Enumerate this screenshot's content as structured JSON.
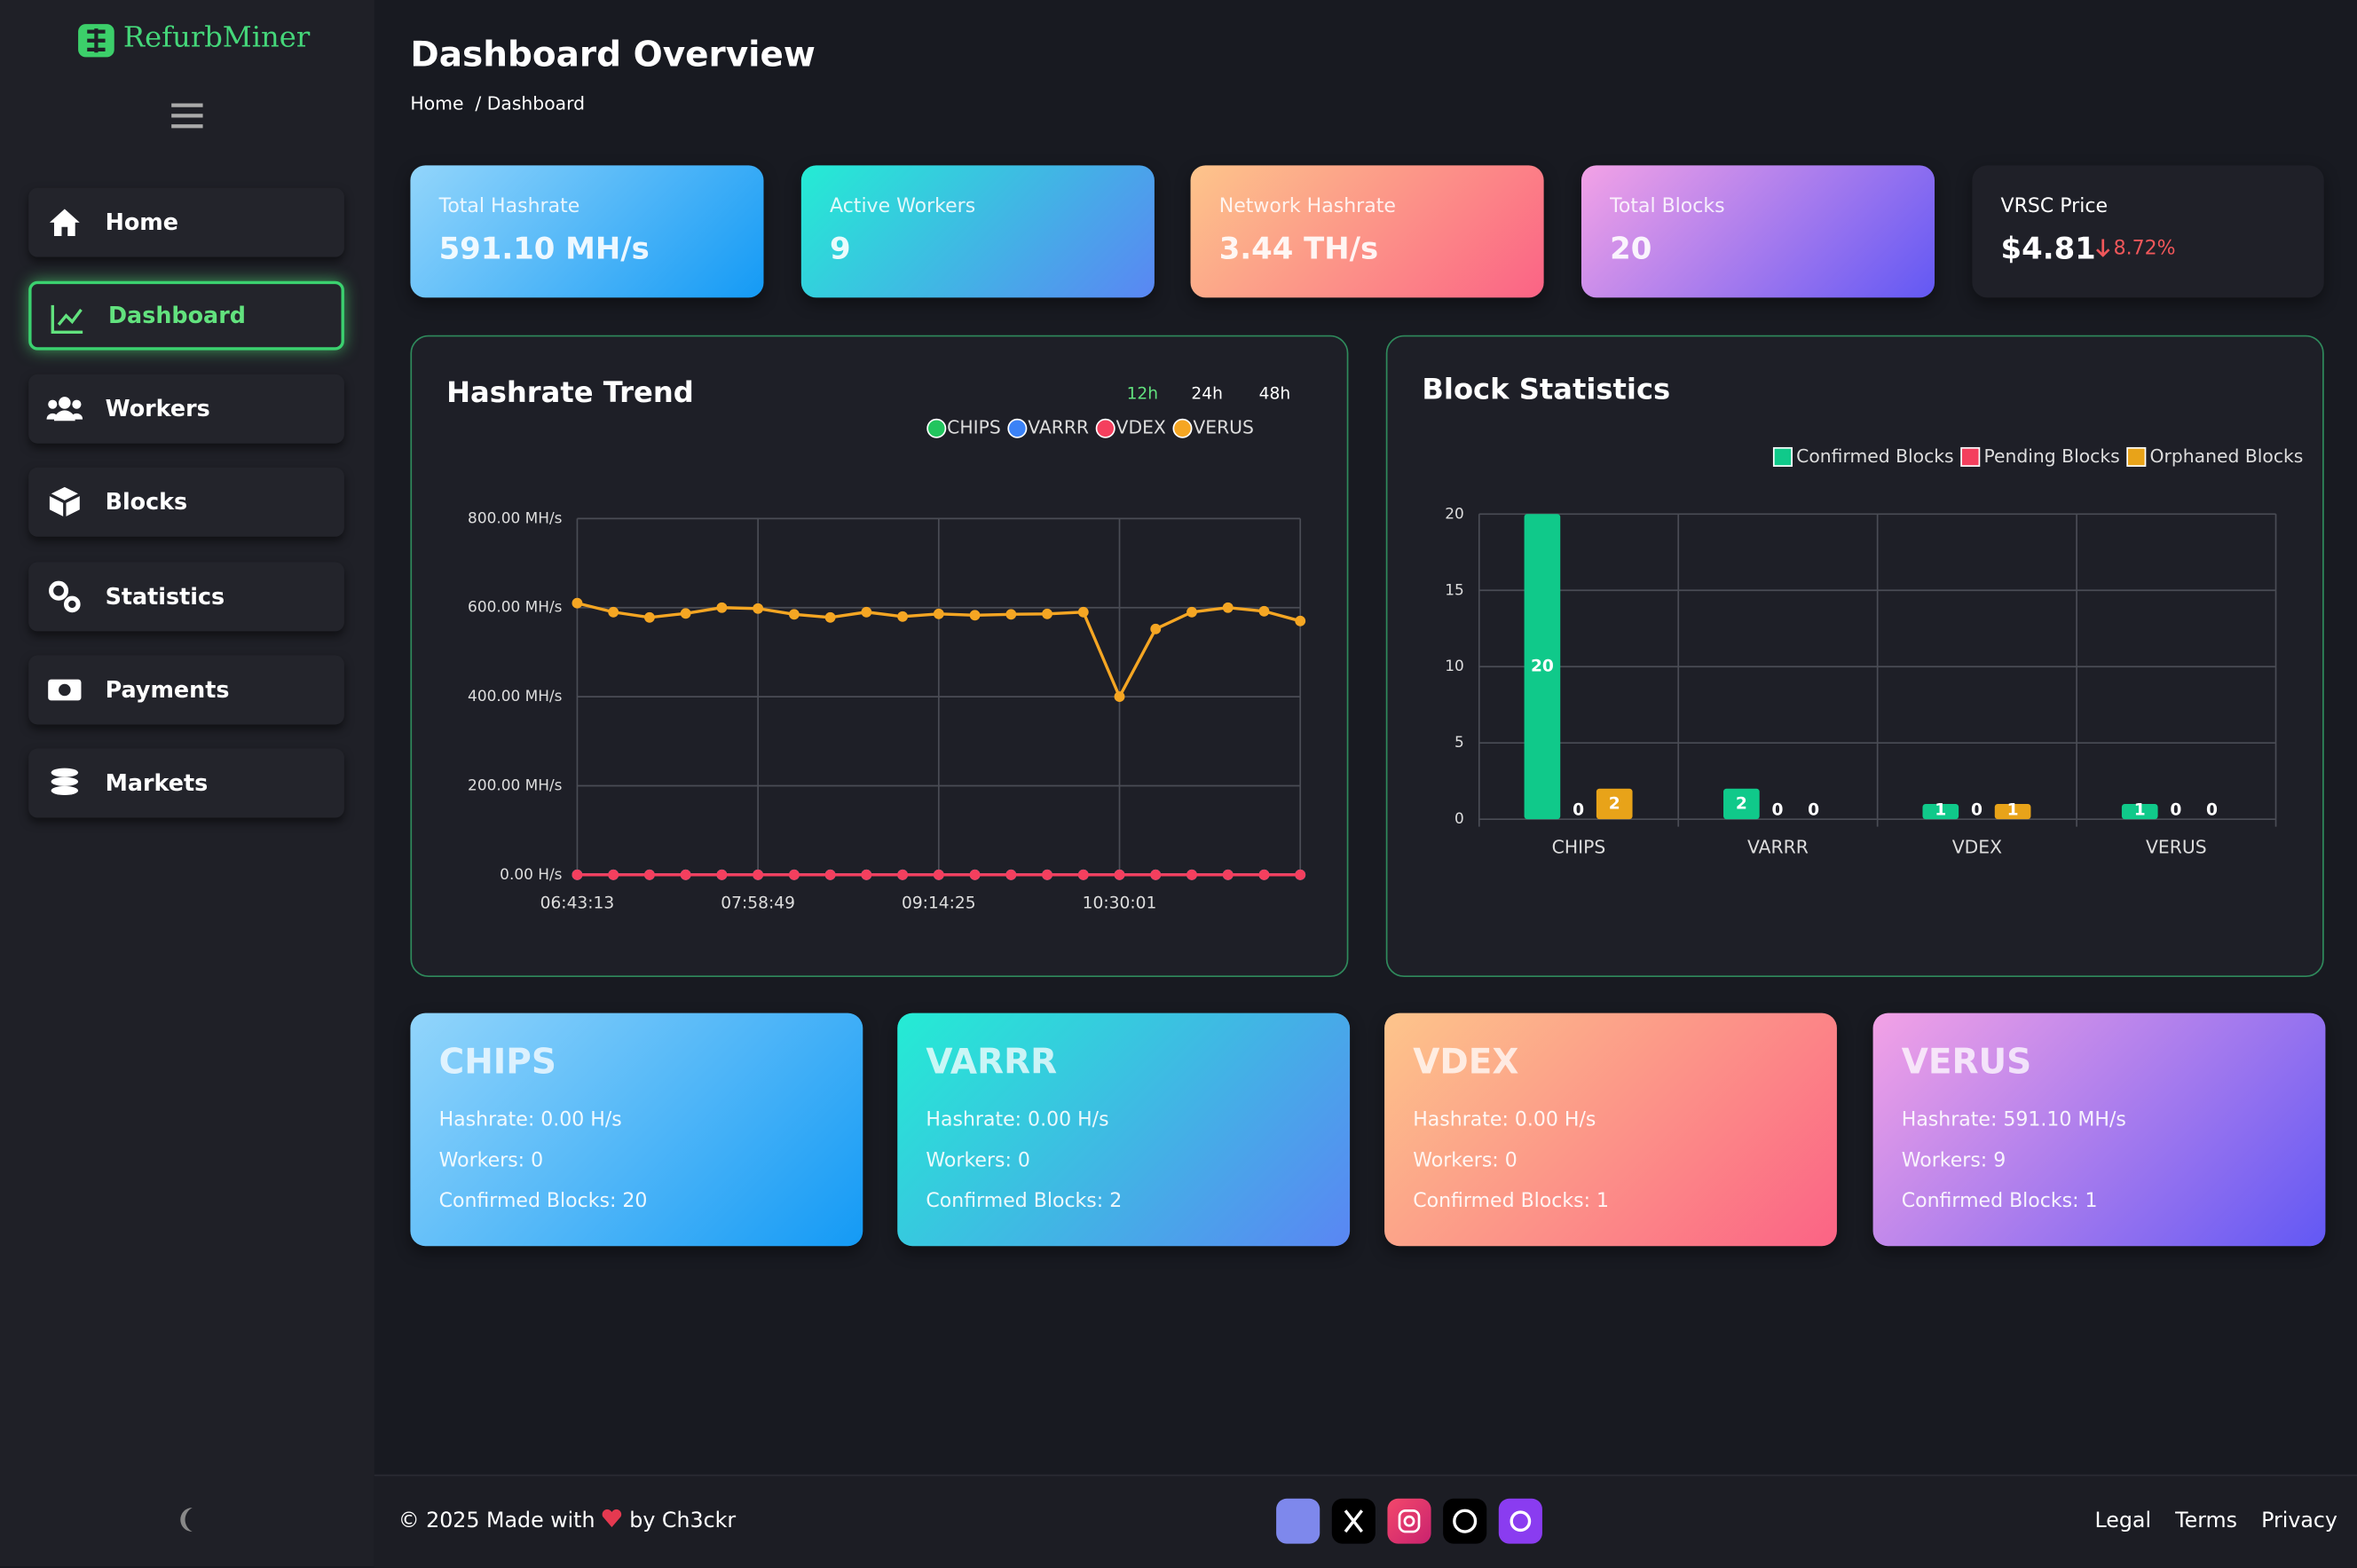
{
  "brand": "RefurbMiner",
  "nav": [
    "Home",
    "Dashboard",
    "Workers",
    "Blocks",
    "Statistics",
    "Payments",
    "Markets"
  ],
  "header": {
    "title": "Dashboard Overview",
    "breadcrumb": [
      "Home",
      "/ Dashboard"
    ]
  },
  "stats": [
    {
      "label": "Total Hashrate",
      "value": "591.10 MH/s"
    },
    {
      "label": "Active Workers",
      "value": "9"
    },
    {
      "label": "Network Hashrate",
      "value": "3.44 TH/s"
    },
    {
      "label": "Total Blocks",
      "value": "20"
    }
  ],
  "price": {
    "label": "VRSC Price",
    "value": "$4.81",
    "change": "8.72%"
  },
  "hashrate_chart": {
    "type": "line",
    "title": "Hashrate Trend",
    "ranges": [
      "12h",
      "24h",
      "48h"
    ],
    "categories": [
      "06:43:13",
      null,
      null,
      null,
      null,
      "07:58:49",
      null,
      null,
      null,
      null,
      "09:14:25",
      null,
      null,
      null,
      null,
      "10:30:01",
      null,
      null,
      null,
      null,
      null
    ],
    "series": [
      {
        "name": "CHIPS",
        "color": "#22c55e",
        "values": [
          0,
          0,
          0,
          0,
          0,
          0,
          0,
          0,
          0,
          0,
          0,
          0,
          0,
          0,
          0,
          0,
          0,
          0,
          0,
          0,
          0
        ]
      },
      {
        "name": "VARRR",
        "color": "#3b82f6",
        "values": [
          0,
          0,
          0,
          0,
          0,
          0,
          0,
          0,
          0,
          0,
          0,
          0,
          0,
          0,
          0,
          0,
          0,
          0,
          0,
          0,
          0
        ]
      },
      {
        "name": "VDEX",
        "color": "#f43f5e",
        "values": [
          0,
          0,
          0,
          0,
          0,
          0,
          0,
          0,
          0,
          0,
          0,
          0,
          0,
          0,
          0,
          0,
          0,
          0,
          0,
          0,
          0
        ]
      },
      {
        "name": "VERUS",
        "color": "#f5a623",
        "values": [
          610,
          590,
          578,
          587,
          600,
          598,
          585,
          578,
          590,
          580,
          586,
          583,
          585,
          586,
          590,
          400,
          552,
          590,
          600,
          592,
          570
        ]
      }
    ],
    "ylim": [
      0,
      800
    ],
    "yticks": [
      {
        "value": 0,
        "label": "0.00 H/s"
      },
      {
        "value": 200,
        "label": "200.00 MH/s"
      },
      {
        "value": 400,
        "label": "400.00 MH/s"
      },
      {
        "value": 600,
        "label": "600.00 MH/s"
      },
      {
        "value": 800,
        "label": "800.00 MH/s"
      }
    ],
    "grid": true
  },
  "block_chart": {
    "type": "bar",
    "title": "Block Statistics",
    "categories": [
      "CHIPS",
      "VARRR",
      "VDEX",
      "VERUS"
    ],
    "series": [
      {
        "name": "Confirmed Blocks",
        "color": "#10c98a",
        "values": [
          20,
          2,
          1,
          1
        ]
      },
      {
        "name": "Pending Blocks",
        "color": "#f43f5e",
        "values": [
          0,
          0,
          0,
          0
        ]
      },
      {
        "name": "Orphaned Blocks",
        "color": "#e8a319",
        "values": [
          2,
          0,
          1,
          0
        ]
      }
    ],
    "ylim": [
      0,
      20
    ],
    "yticks": [
      0,
      5,
      10,
      15,
      20
    ],
    "grid": true
  },
  "coins": [
    {
      "name": "CHIPS",
      "hashrate": "Hashrate: 0.00 H/s",
      "workers": "Workers: 0",
      "confirmed": "Confirmed Blocks: 20"
    },
    {
      "name": "VARRR",
      "hashrate": "Hashrate: 0.00 H/s",
      "workers": "Workers: 0",
      "confirmed": "Confirmed Blocks: 2"
    },
    {
      "name": "VDEX",
      "hashrate": "Hashrate: 0.00 H/s",
      "workers": "Workers: 0",
      "confirmed": "Confirmed Blocks: 1"
    },
    {
      "name": "VERUS",
      "hashrate": "Hashrate: 591.10 MH/s",
      "workers": "Workers: 9",
      "confirmed": "Confirmed Blocks: 1"
    }
  ],
  "footer": {
    "credit_before": "© 2025 Made with",
    "credit_after": "by Ch3ckr",
    "links": [
      "Legal",
      "Terms",
      "Privacy"
    ]
  }
}
